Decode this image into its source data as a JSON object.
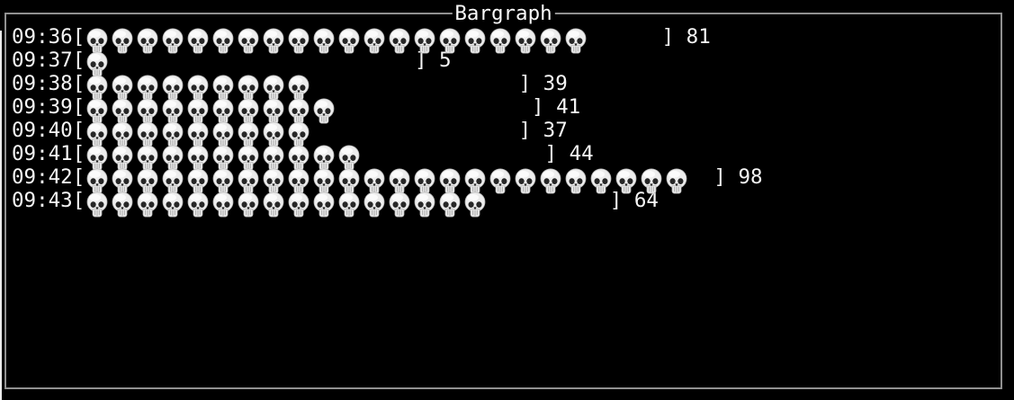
{
  "window": {
    "title": "Bargraph",
    "colors": {
      "background": "#000000",
      "frame_border": "#919191",
      "text": "#f6f6f6",
      "edge_highlight": "#ececec"
    }
  },
  "chart_data": {
    "type": "bar",
    "orientation": "horizontal",
    "title": "Bargraph",
    "categories": [
      "09:36",
      "09:37",
      "09:38",
      "09:39",
      "09:40",
      "09:41",
      "09:42",
      "09:43"
    ],
    "values": [
      81,
      5,
      39,
      41,
      37,
      44,
      98,
      64
    ],
    "bar_glyph_char": "💀",
    "bar_glyph_name": "skull-emoji",
    "units_per_glyph": 4,
    "bar_field_chars": 26,
    "open_bracket": "[",
    "close_bracket": "]",
    "value_label_position": "after-bracket",
    "grid": false,
    "legend": false
  }
}
